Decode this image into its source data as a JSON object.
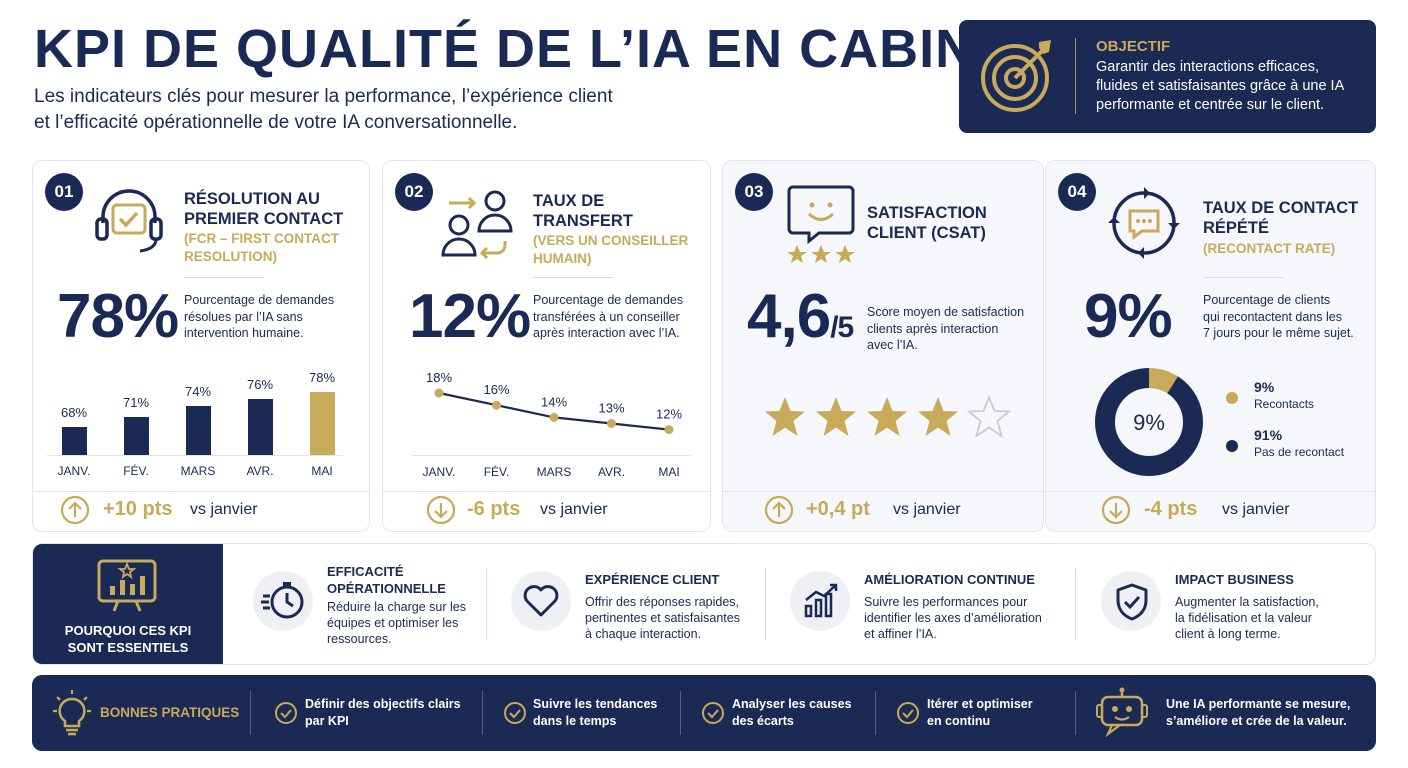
{
  "header": {
    "title": "KPI DE QUALITÉ DE L’IA EN CABINET",
    "subtitle_line1": "Les indicateurs clés pour mesurer la performance, l’expérience client",
    "subtitle_line2": "et l’efficacité opérationnelle de votre IA conversationnelle."
  },
  "objective": {
    "label": "OBJECTIF",
    "text": "Garantir des interactions efficaces, fluides et satisfaisantes grâce à une IA performante et centrée sur le client.",
    "icon": "target-icon"
  },
  "cards": [
    {
      "number": "01",
      "title_line1": "RÉSOLUTION AU",
      "title_line2": "PREMIER CONTACT",
      "sub_line1": "(FCR – FIRST CONTACT",
      "sub_line2": "RESOLUTION)",
      "value": "78%",
      "desc_line1": "Pourcentage de demandes",
      "desc_line2": "résolues par l’IA sans",
      "desc_line3": "intervention humaine.",
      "icon": "headset-icon",
      "chart_data": {
        "type": "bar",
        "categories": [
          "JANV.",
          "FÉV.",
          "MARS",
          "AVR.",
          "MAI"
        ],
        "values": [
          68,
          71,
          74,
          76,
          78
        ],
        "value_labels": [
          "68%",
          "71%",
          "74%",
          "76%",
          "78%"
        ],
        "highlight_color": "#c9a95a",
        "bar_color": "#1b2a55"
      },
      "delta": "+10 pts",
      "delta_direction": "up",
      "vs": "vs janvier"
    },
    {
      "number": "02",
      "title_line1": "TAUX DE",
      "title_line2": "TRANSFERT",
      "sub_line1": "(VERS UN CONSEILLER",
      "sub_line2": "HUMAIN)",
      "value": "12%",
      "desc_line1": "Pourcentage de demandes",
      "desc_line2": "transférées à un conseiller",
      "desc_line3": "après interaction avec l’IA.",
      "icon": "transfer-users-icon",
      "chart_data": {
        "type": "line",
        "categories": [
          "JANV.",
          "FÉV.",
          "MARS",
          "AVR.",
          "MAI"
        ],
        "values": [
          18,
          16,
          14,
          13,
          12
        ],
        "value_labels": [
          "18%",
          "16%",
          "14%",
          "13%",
          "12%"
        ],
        "line_color": "#1b2a55",
        "point_color": "#c9a95a"
      },
      "delta": "-6 pts",
      "delta_direction": "down",
      "vs": "vs janvier"
    },
    {
      "number": "03",
      "title_line1": "SATISFACTION",
      "title_line2": "CLIENT (CSAT)",
      "value_main": "4,6",
      "value_suffix": "/5",
      "desc_line1": "Score moyen de satisfaction",
      "desc_line2": "clients après interaction",
      "desc_line3": "avec l’IA.",
      "icon": "smiley-chat-icon",
      "rating": {
        "filled": 4,
        "total": 5
      },
      "delta": "+0,4 pt",
      "delta_direction": "up",
      "vs": "vs janvier"
    },
    {
      "number": "04",
      "title_line1": "TAUX DE CONTACT",
      "title_line2": "RÉPÉTÉ",
      "sub_line1": "(RECONTACT RATE)",
      "value": "9%",
      "desc_line1": "Pourcentage de clients",
      "desc_line2": "qui recontactent dans les",
      "desc_line3": "7 jours pour le même sujet.",
      "icon": "recontact-cycle-icon",
      "chart_data": {
        "type": "pie",
        "center_label": "9%",
        "slices": [
          {
            "label": "Recontacts",
            "value": 9,
            "value_label": "9%",
            "color": "#c9a95a"
          },
          {
            "label": "Pas de recontact",
            "value": 91,
            "value_label": "91%",
            "color": "#1b2a55"
          }
        ]
      },
      "delta": "-4 pts",
      "delta_direction": "down",
      "vs": "vs janvier"
    }
  ],
  "why": {
    "title_line1": "POURQUOI CES KPI",
    "title_line2": "SONT ESSENTIELS",
    "icon": "chart-star-icon",
    "items": [
      {
        "title_line1": "EFFICACITÉ",
        "title_line2": "OPÉRATIONNELLE",
        "desc_line1": "Réduire la charge sur les",
        "desc_line2": "équipes et optimiser les",
        "desc_line3": "ressources.",
        "icon": "speed-clock-icon"
      },
      {
        "title_line1": "EXPÉRIENCE CLIENT",
        "desc_line1": "Offrir des réponses rapides,",
        "desc_line2": "pertinentes et satisfaisantes",
        "desc_line3": "à chaque interaction.",
        "icon": "heart-icon"
      },
      {
        "title_line1": "AMÉLIORATION CONTINUE",
        "desc_line1": "Suivre les performances pour",
        "desc_line2": "identifier les axes d’amélioration",
        "desc_line3": "et affiner l’IA.",
        "icon": "growth-chart-icon"
      },
      {
        "title_line1": "IMPACT BUSINESS",
        "desc_line1": "Augmenter la satisfaction,",
        "desc_line2": "la fidélisation et la valeur",
        "desc_line3": "client à long terme.",
        "icon": "shield-check-icon"
      }
    ]
  },
  "best_practices": {
    "title": "BONNES PRATIQUES",
    "icon": "lightbulb-icon",
    "items": [
      {
        "line1": "Définir des objectifs clairs",
        "line2": "par KPI"
      },
      {
        "line1": "Suivre les tendances",
        "line2": "dans le temps"
      },
      {
        "line1": "Analyser les causes",
        "line2": "des écarts"
      },
      {
        "line1": "Itérer et optimiser",
        "line2": "en continu"
      }
    ],
    "closing_line1": "Une IA performante se mesure,",
    "closing_line2": "s’améliore et crée de la valeur.",
    "closing_icon": "robot-icon"
  },
  "colors": {
    "navy": "#1b2a55",
    "gold": "#c9a95a"
  }
}
